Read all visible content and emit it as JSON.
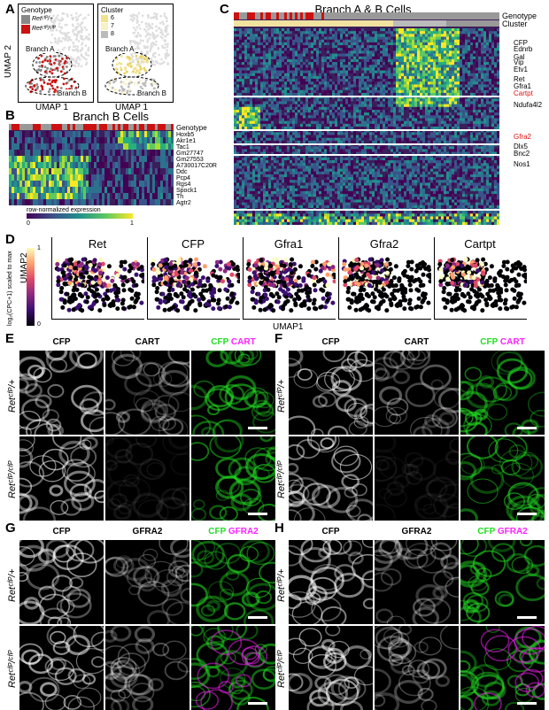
{
  "panels": {
    "A": {
      "letter": "A",
      "ylabel": "UMAP 2",
      "xlabel1": "UMAP 1",
      "xlabel2": "UMAP 1",
      "legend_genotype_title": "Genotype",
      "legend_genotype": [
        "Retᶜᶠᴾ/+",
        "Retᶜᶠᴾ/ᶜᶠᴾ"
      ],
      "legend_cluster_title": "Cluster",
      "legend_cluster": [
        "6",
        "7",
        "8"
      ],
      "branch_a": "Branch A",
      "branch_b": "Branch B",
      "colors": {
        "het": "#888888",
        "hom": "#cc1111",
        "c6": "#f2e28a",
        "c7": "#f8f1c8",
        "c8": "#bbbbbb"
      }
    },
    "B": {
      "letter": "B",
      "title": "Branch B Cells",
      "genotype_label": "Genotype",
      "genes": [
        "Hoxb5",
        "Akr1e1",
        "Tac1",
        "Gm27747",
        "Gm27553",
        "A730017C20R",
        "Ddc",
        "Pcp4",
        "Rgs4",
        "Spock1",
        "Th",
        "Agtr2"
      ],
      "colorbar_label": "row-normalized expression",
      "colorbar_min": "0",
      "colorbar_max": "1"
    },
    "C": {
      "letter": "C",
      "title": "Branch A & B Cells",
      "genotype_label": "Genotype",
      "cluster_label": "Cluster",
      "genes": [
        "CFP",
        "Ednrb",
        "Gal",
        "Vip",
        "Etv1",
        "Ret",
        "Gfra1",
        "Cartpt",
        "Ndufa4l2",
        "Gfra2",
        "Dlx5",
        "Bnc2",
        "Nos1"
      ],
      "red_genes": [
        "Cartpt",
        "Gfra2"
      ]
    },
    "D": {
      "letter": "D",
      "genes": [
        "Ret",
        "CFP",
        "Gfra1",
        "Gfra2",
        "Cartpt"
      ],
      "ylabel": "UMAP2",
      "xlabel": "UMAP1",
      "colorbar_label": "log₂(CPC+1) scaled to max",
      "colorbar_max": "1",
      "colorbar_min": "0"
    },
    "E": {
      "letter": "E",
      "channels": [
        "CFP",
        "CART",
        "CFP",
        "CART"
      ]
    },
    "F": {
      "letter": "F",
      "channels": [
        "CFP",
        "CART",
        "CFP",
        "CART"
      ]
    },
    "G": {
      "letter": "G",
      "channels": [
        "CFP",
        "GFRA2",
        "CFP",
        "GFRA2"
      ]
    },
    "H": {
      "letter": "H",
      "channels": [
        "CFP",
        "GFRA2",
        "CFP",
        "GFRA2"
      ]
    },
    "genotype_het": "Retᶜᶠᴾ/+",
    "genotype_hom": "Retᶜᶠᴾ/ᶜᶠᴾ",
    "colors": {
      "cfp": "#22dd22",
      "cart": "#ff22ff",
      "accent_red": "#dd1111"
    }
  }
}
